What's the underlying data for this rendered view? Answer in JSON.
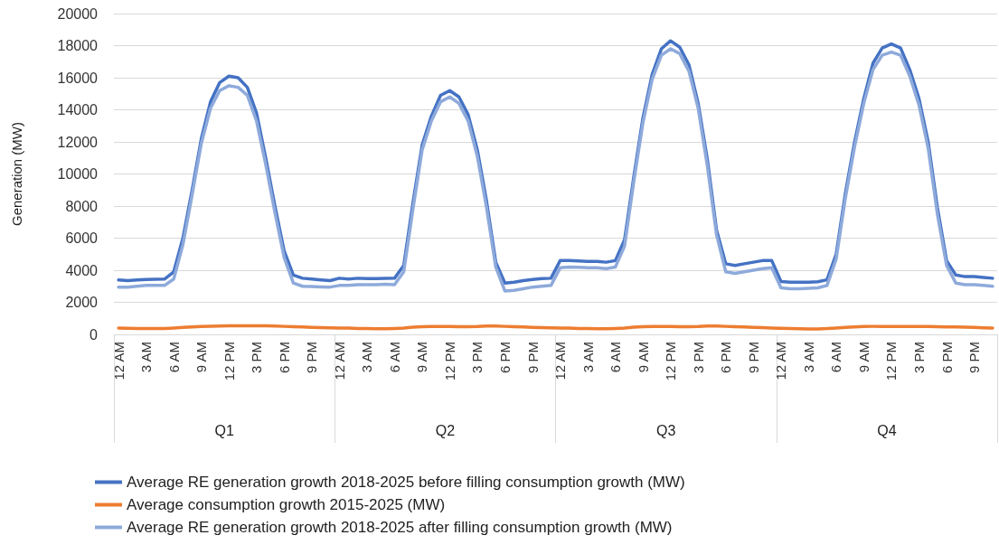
{
  "chart_data": {
    "type": "line",
    "ylabel": "Generation (MW)",
    "categories": [
      "12 AM",
      null,
      null,
      "3 AM",
      null,
      null,
      "6 AM",
      null,
      null,
      "9 AM",
      null,
      null,
      "12 PM",
      null,
      null,
      "3 PM",
      null,
      null,
      "6 PM",
      null,
      null,
      "9 PM",
      null,
      null,
      "12 AM",
      null,
      null,
      "3 AM",
      null,
      null,
      "6 AM",
      null,
      null,
      "9 AM",
      null,
      null,
      "12 PM",
      null,
      null,
      "3 PM",
      null,
      null,
      "6 PM",
      null,
      null,
      "9 PM",
      null,
      null,
      "12 AM",
      null,
      null,
      "3 AM",
      null,
      null,
      "6 AM",
      null,
      null,
      "9 AM",
      null,
      null,
      "12 PM",
      null,
      null,
      "3 PM",
      null,
      null,
      "6 PM",
      null,
      null,
      "9 PM",
      null,
      null,
      "12 AM",
      null,
      null,
      "3 AM",
      null,
      null,
      "6 AM",
      null,
      null,
      "9 AM",
      null,
      null,
      "12 PM",
      null,
      null,
      "3 PM",
      null,
      null,
      "6 PM",
      null,
      null,
      "9 PM",
      null,
      null
    ],
    "annotations": [
      "Q1",
      "Q2",
      "Q3",
      "Q4"
    ],
    "series": [
      {
        "name": "Average RE generation growth 2018-2025 before filling consumption growth (MW)",
        "color": "#4472c4",
        "values": [
          3400,
          3350,
          3400,
          3420,
          3430,
          3450,
          3900,
          6000,
          9000,
          12200,
          14500,
          15700,
          16100,
          16000,
          15400,
          13800,
          11000,
          8000,
          5200,
          3700,
          3500,
          3450,
          3400,
          3350,
          3500,
          3450,
          3500,
          3480,
          3480,
          3490,
          3500,
          4300,
          8200,
          11800,
          13600,
          14900,
          15200,
          14800,
          13700,
          11500,
          8300,
          4500,
          3200,
          3250,
          3350,
          3420,
          3480,
          3500,
          4600,
          4600,
          4580,
          4550,
          4550,
          4500,
          4600,
          5900,
          9800,
          13500,
          16200,
          17800,
          18300,
          17900,
          16800,
          14400,
          10900,
          6500,
          4400,
          4300,
          4400,
          4500,
          4600,
          4600,
          3300,
          3250,
          3250,
          3260,
          3280,
          3400,
          5000,
          8800,
          12000,
          14700,
          16900,
          17850,
          18100,
          17850,
          16500,
          14700,
          12000,
          7900,
          4600,
          3700,
          3600,
          3600,
          3550,
          3500
        ]
      },
      {
        "name": "Average consumption growth 2015-2025 (MW)",
        "color": "#ed7d31",
        "values": [
          400,
          380,
          370,
          360,
          360,
          370,
          400,
          430,
          460,
          490,
          510,
          520,
          530,
          530,
          540,
          540,
          530,
          520,
          500,
          480,
          460,
          440,
          420,
          410,
          400,
          390,
          370,
          360,
          350,
          350,
          370,
          400,
          450,
          480,
          490,
          490,
          490,
          480,
          480,
          490,
          520,
          520,
          500,
          480,
          460,
          440,
          420,
          410,
          400,
          390,
          370,
          360,
          350,
          350,
          370,
          400,
          450,
          480,
          490,
          490,
          490,
          480,
          480,
          490,
          520,
          520,
          500,
          480,
          460,
          440,
          420,
          400,
          380,
          360,
          350,
          340,
          340,
          360,
          400,
          440,
          470,
          490,
          500,
          500,
          500,
          500,
          500,
          500,
          490,
          480,
          470,
          460,
          450,
          430,
          410,
          400
        ]
      },
      {
        "name": "Average RE generation growth 2018-2025 after filling consumption growth (MW)",
        "color": "#8eaadb",
        "values": [
          2950,
          2950,
          3000,
          3050,
          3050,
          3050,
          3450,
          5600,
          8700,
          11900,
          14100,
          15200,
          15500,
          15400,
          14900,
          13300,
          10600,
          7600,
          4800,
          3200,
          3000,
          2980,
          2960,
          2950,
          3050,
          3050,
          3100,
          3100,
          3100,
          3120,
          3100,
          3900,
          7800,
          11500,
          13300,
          14500,
          14800,
          14400,
          13300,
          11100,
          7900,
          4200,
          2700,
          2750,
          2850,
          2950,
          3000,
          3050,
          4150,
          4200,
          4180,
          4150,
          4150,
          4100,
          4200,
          5500,
          9500,
          13200,
          15900,
          17400,
          17800,
          17500,
          16400,
          14100,
          10500,
          6200,
          3900,
          3800,
          3900,
          4000,
          4100,
          4150,
          2900,
          2850,
          2850,
          2870,
          2900,
          3050,
          4700,
          8500,
          11700,
          14400,
          16500,
          17400,
          17600,
          17400,
          16100,
          14300,
          11600,
          7500,
          4300,
          3200,
          3100,
          3100,
          3050,
          3000
        ]
      }
    ],
    "ylim": [
      0,
      20000
    ],
    "yticks": [
      0,
      2000,
      4000,
      6000,
      8000,
      10000,
      12000,
      14000,
      16000,
      18000,
      20000
    ],
    "grid": "y",
    "legend": "bottom",
    "marker": "none",
    "line_style": "solid"
  }
}
